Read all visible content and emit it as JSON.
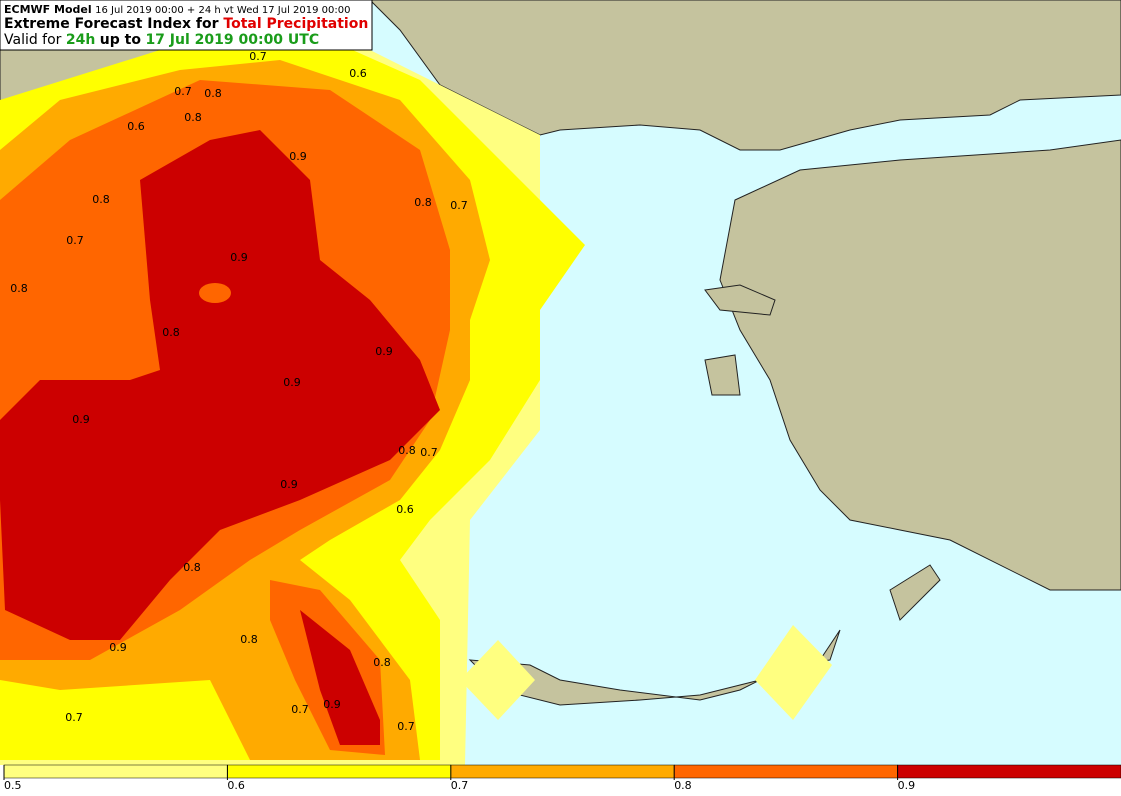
{
  "header": {
    "model": "ECMWF Model",
    "run": "16 Jul 2019 00:00 + 24 h vt Wed 17 Jul 2019 00:00",
    "title_prefix": "Extreme Forecast Index for",
    "parameter": "Total Precipitation",
    "valid_prefix": "Valid for",
    "period": "24h",
    "valid_middle": "up to",
    "valid_time": "17 Jul 2019 00:00 UTC"
  },
  "contour_labels": [
    0.7,
    0.6,
    0.7,
    0.8,
    0.6,
    0.8,
    0.9,
    0.8,
    0.8,
    0.7,
    0.7,
    0.9,
    0.8,
    0.8,
    0.9,
    0.9,
    0.9,
    0.8,
    0.7,
    0.9,
    0.6,
    0.8,
    0.8,
    0.9,
    0.8,
    0.7,
    0.7,
    0.9,
    0.7
  ],
  "colorbar": {
    "range": [
      0.5,
      1.0
    ],
    "ticks": [
      0.5,
      0.6,
      0.7,
      0.8,
      0.9
    ],
    "colors": [
      "#ffff80",
      "#ffff00",
      "#ffaa00",
      "#ff6600",
      "#cc0000"
    ]
  }
}
